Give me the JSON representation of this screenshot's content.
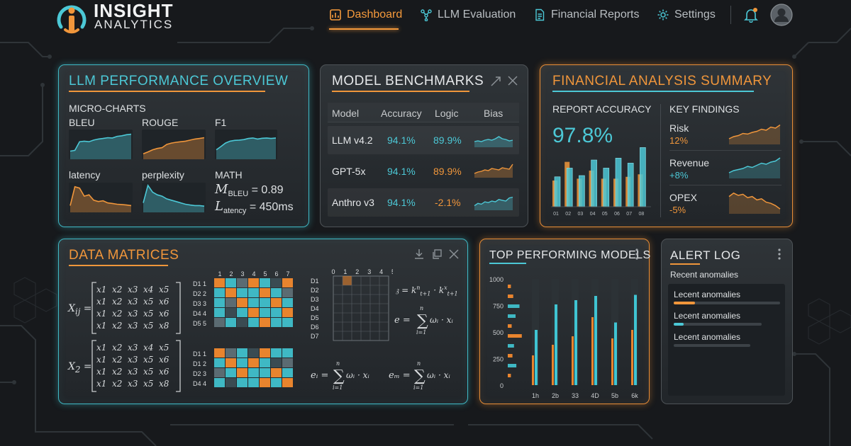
{
  "brand": {
    "line1": "INSIGHT",
    "line2": "ANALYTICS"
  },
  "nav": {
    "items": [
      {
        "label": "Dashboard",
        "icon": "dashboard-icon",
        "active": true
      },
      {
        "label": "LLM Evaluation",
        "icon": "nodes-icon",
        "active": false
      },
      {
        "label": "Financial Reports",
        "icon": "document-icon",
        "active": false
      },
      {
        "label": "Settings",
        "icon": "gear-icon",
        "active": false
      }
    ],
    "notification_icon": "bell-icon",
    "avatar_icon": "user-icon"
  },
  "llm_overview": {
    "title": "LLM PERFORMANCE OVERVIEW",
    "section_label": "MICRO-CHARTS",
    "charts": [
      {
        "label": "BLEU",
        "color": "#4cc8d6",
        "values": [
          0.25,
          0.28,
          0.6,
          0.62,
          0.6,
          0.66,
          0.7,
          0.72,
          0.75,
          0.74,
          0.8,
          0.82,
          0.86,
          0.88
        ]
      },
      {
        "label": "ROUGE",
        "color": "#f0963b",
        "values": [
          0.15,
          0.22,
          0.3,
          0.35,
          0.38,
          0.5,
          0.55,
          0.58,
          0.6,
          0.62,
          0.66,
          0.7,
          0.72,
          0.75
        ]
      },
      {
        "label": "F1",
        "color": "#4cc8d6",
        "values": [
          0.3,
          0.42,
          0.55,
          0.62,
          0.65,
          0.66,
          0.68,
          0.72,
          0.74,
          0.7,
          0.73,
          0.74,
          0.72,
          0.74
        ]
      },
      {
        "label": "latency",
        "color": "#f0963b",
        "values": [
          0.2,
          0.9,
          0.85,
          0.55,
          0.6,
          0.4,
          0.35,
          0.38,
          0.3,
          0.28,
          0.25,
          0.24,
          0.22,
          0.2
        ]
      },
      {
        "label": "perplexity",
        "color": "#4cc8d6",
        "values": [
          0.3,
          0.95,
          0.7,
          0.6,
          0.55,
          0.45,
          0.4,
          0.35,
          0.3,
          0.25,
          0.22,
          0.2,
          0.2,
          0.18
        ]
      }
    ],
    "math_label": "MATH",
    "formula1": {
      "sym": "M",
      "sub": "BLEU",
      "rest": " = 0.89"
    },
    "formula2": {
      "sym": "L",
      "sub": "atency",
      "rest": " = 450ms"
    }
  },
  "benchmarks": {
    "title": "MODEL BENCHMARKS",
    "expand_icon": "expand-icon",
    "close_icon": "close-icon",
    "columns": [
      "Model",
      "Accuracy",
      "Logic",
      "Bias"
    ],
    "rows": [
      {
        "model": "LLM v4.2",
        "accuracy": "94.1%",
        "logic": "89.9%",
        "logic_color": "teal",
        "spark_color": "#4cc8d6",
        "spark": [
          0.3,
          0.35,
          0.3,
          0.4,
          0.45,
          0.4,
          0.5,
          0.65,
          0.5,
          0.45,
          0.35,
          0.4
        ]
      },
      {
        "model": "GPT-5x",
        "accuracy": "94.1%",
        "logic": "89.9%",
        "logic_color": "orange",
        "spark_color": "#f0963b",
        "spark": [
          0.2,
          0.3,
          0.35,
          0.45,
          0.4,
          0.55,
          0.5,
          0.45,
          0.6,
          0.55,
          0.5,
          0.85
        ]
      },
      {
        "model": "Anthro v3",
        "accuracy": "94.1%",
        "logic": "-2.1%",
        "logic_color": "orange",
        "spark_color": "#4cc8d6",
        "spark": [
          0.2,
          0.35,
          0.3,
          0.45,
          0.4,
          0.5,
          0.45,
          0.6,
          0.55,
          0.5,
          0.7,
          0.75
        ]
      }
    ]
  },
  "financial": {
    "title": "FINANCIAL ANALYSIS SUMMARY",
    "accuracy_label": "REPORT ACCURACY",
    "accuracy_value": "97.8%",
    "bar_chart": {
      "categories": [
        "01",
        "02",
        "03",
        "04",
        "05",
        "06",
        "07",
        "08"
      ],
      "teal": [
        0.48,
        0.62,
        0.5,
        0.75,
        0.62,
        0.78,
        0.7,
        0.95
      ],
      "orange": [
        0.42,
        0.72,
        0.45,
        0.58,
        0.45,
        0.45,
        0.48,
        0.52
      ]
    },
    "findings_label": "KEY FINDINGS",
    "findings": [
      {
        "label": "Risk",
        "value": "12%",
        "color": "#f0963b",
        "spark": [
          0.2,
          0.3,
          0.35,
          0.45,
          0.42,
          0.5,
          0.55,
          0.65,
          0.6,
          0.75,
          0.7,
          0.85
        ]
      },
      {
        "label": "Revenue",
        "value": "+8%",
        "color": "#4cc8d6",
        "spark": [
          0.2,
          0.3,
          0.35,
          0.4,
          0.5,
          0.45,
          0.55,
          0.65,
          0.6,
          0.7,
          0.75,
          0.9
        ]
      },
      {
        "label": "OPEX",
        "value": "-5%",
        "color": "#f0963b",
        "spark": [
          0.7,
          0.85,
          0.75,
          0.8,
          0.65,
          0.7,
          0.55,
          0.6,
          0.45,
          0.4,
          0.3,
          0.15
        ]
      }
    ]
  },
  "matrices": {
    "title": "DATA MATRICES",
    "download_icon": "download-icon",
    "copy_icon": "copy-icon",
    "close_icon": "close-icon",
    "m1_label": "X",
    "m1_sub": "ij",
    "m2_label": "X",
    "m2_sub": "2",
    "grid": [
      [
        "x1",
        "x2",
        "x3",
        "x4",
        "x5"
      ],
      [
        "x1",
        "x2",
        "x3",
        "x5",
        "x6"
      ],
      [
        "x1",
        "x2",
        "x3",
        "x5",
        "x6"
      ],
      [
        "x1",
        "x2",
        "x3",
        "x5",
        "x8"
      ]
    ],
    "heat_cols": [
      "1",
      "2",
      "3",
      "4",
      "5",
      "6",
      "7"
    ],
    "heat1_rows": [
      "D1 1",
      "D2 2",
      "D3 3",
      "D4 4",
      "D5 5"
    ],
    "heat2_rows": [
      "D1 1",
      "D1 2",
      "D2 3",
      "D4 4"
    ],
    "heat3_cols": [
      "0",
      "1",
      "2",
      "3",
      "4",
      "5"
    ],
    "heat3_rows": [
      "D1",
      "D2",
      "D3",
      "D4",
      "D5",
      "D6",
      "D7"
    ],
    "eq1": "𝔷 = k",
    "eq2_lhs": "e =",
    "eq3_lhs": "e",
    "eq4_lhs": "e"
  },
  "top_models": {
    "title": "TOP PERFORMING MODELS",
    "menu_icon": "kebab-icon",
    "y_ticks": [
      "1000",
      "750",
      "500",
      "250",
      "0"
    ],
    "categories": [
      "1h",
      "2b",
      "33",
      "4D",
      "5b",
      "6k"
    ],
    "teal": [
      520,
      760,
      800,
      840,
      590,
      850
    ],
    "orange": [
      280,
      380,
      460,
      640,
      440,
      520
    ]
  },
  "alert_log": {
    "title": "ALERT LOG",
    "menu_icon": "kebab-icon",
    "subtitle": "Recent anomalies",
    "items": [
      "Lecent anomalies",
      "Lecent anomalies",
      "Lecent anomalies"
    ]
  }
}
